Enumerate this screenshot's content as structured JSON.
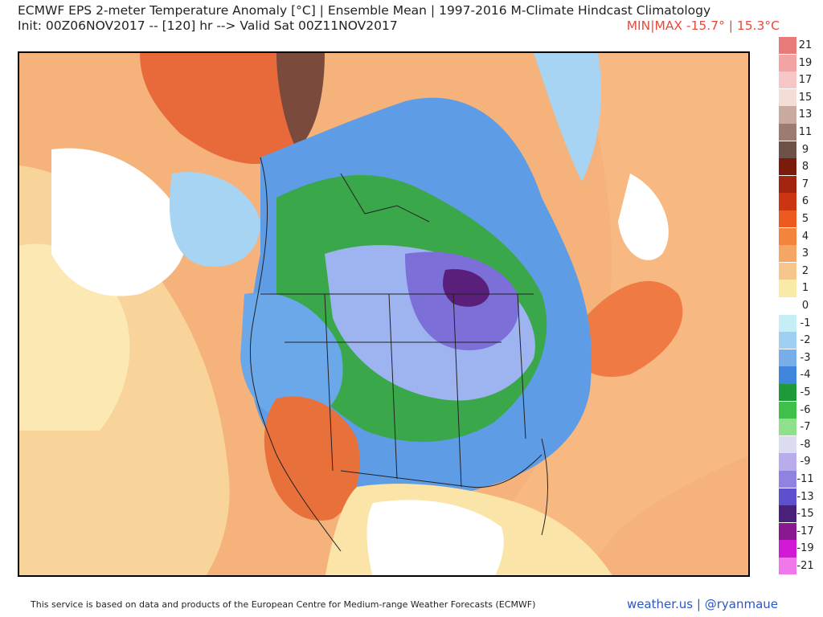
{
  "header": {
    "title": "ECMWF EPS 2-meter Temperature Anomaly [°C] | Ensemble Mean | 1997-2016 M-Climate Hindcast Climatology",
    "subtitle": "Init: 00Z06NOV2017 -- [120] hr --> Valid Sat 00Z11NOV2017",
    "minmax": "MIN|MAX -15.7° | 15.3°C"
  },
  "colorbar": {
    "labels": [
      "21",
      "19",
      "17",
      "15",
      "13",
      "11",
      "9",
      "8",
      "7",
      "6",
      "5",
      "4",
      "3",
      "2",
      "1",
      "0",
      "-1",
      "-2",
      "-3",
      "-4",
      "-5",
      "-6",
      "-7",
      "-8",
      "-9",
      "-11",
      "-13",
      "-15",
      "-17",
      "-19",
      "-21"
    ],
    "colors": [
      "#e87a7a",
      "#f2a3a3",
      "#f7c7c7",
      "#f3ddd6",
      "#c9a9a0",
      "#9c7b72",
      "#6e5148",
      "#7a1b0c",
      "#a32410",
      "#cc3413",
      "#ec5a1f",
      "#f2843c",
      "#f5a564",
      "#f7c68a",
      "#faeaa8",
      "#ffffff",
      "#c6eef7",
      "#9fcff2",
      "#77aeea",
      "#3f86dc",
      "#1f9a3a",
      "#3fc04a",
      "#8fe08a",
      "#dcdcf0",
      "#b8acea",
      "#8f82e0",
      "#5e4fcc",
      "#4a2178",
      "#8a1890",
      "#d21ad6",
      "#f078ea"
    ]
  },
  "map": {
    "region": "North America",
    "cold_anomaly_min_c": -15.7,
    "warm_anomaly_max_c": 15.3
  },
  "footer": {
    "credit": "This service is based on data and products of the European Centre for Medium-range Weather Forecasts (ECMWF)",
    "brand": "weather.us | @ryanmaue"
  }
}
